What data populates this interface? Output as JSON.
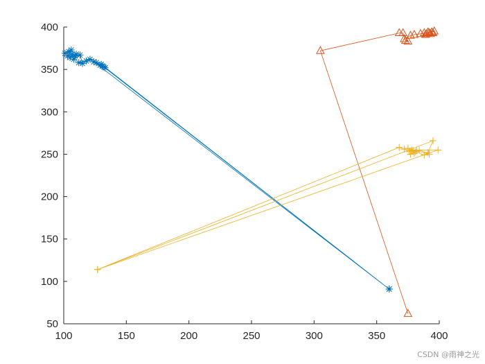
{
  "chart_data": {
    "type": "scatter",
    "xlim": [
      100,
      400
    ],
    "ylim": [
      50,
      400
    ],
    "xticks": [
      100,
      150,
      200,
      250,
      300,
      350,
      400
    ],
    "yticks": [
      50,
      100,
      150,
      200,
      250,
      300,
      350,
      400
    ],
    "grid": false,
    "box": false,
    "series": [
      {
        "color": "#0072BD",
        "marker": "asterisk",
        "points": [
          [
            101,
            369
          ],
          [
            104,
            371
          ],
          [
            106,
            373
          ],
          [
            103,
            366
          ],
          [
            107,
            368
          ],
          [
            109,
            366
          ],
          [
            105,
            364
          ],
          [
            110,
            368
          ],
          [
            108,
            362
          ],
          [
            113,
            367
          ],
          [
            115,
            357
          ],
          [
            112,
            358
          ],
          [
            118,
            360
          ],
          [
            121,
            362
          ],
          [
            126,
            358
          ],
          [
            129,
            355
          ],
          [
            131,
            354
          ],
          [
            133,
            352
          ],
          [
            360,
            91
          ],
          [
            130,
            356
          ],
          [
            124,
            359
          ],
          [
            360,
            91
          ],
          [
            132,
            353
          ]
        ]
      },
      {
        "color": "#D95319",
        "marker": "triangle",
        "points": [
          [
            375,
            62
          ],
          [
            305,
            372
          ],
          [
            368,
            393
          ],
          [
            371,
            393
          ],
          [
            373,
            384
          ],
          [
            375,
            383
          ],
          [
            372,
            386
          ],
          [
            377,
            390
          ],
          [
            380,
            391
          ],
          [
            385,
            392
          ],
          [
            388,
            393
          ],
          [
            390,
            392
          ],
          [
            392,
            393
          ],
          [
            394,
            394
          ],
          [
            396,
            395
          ],
          [
            391,
            394
          ],
          [
            389,
            391
          ],
          [
            393,
            392
          ],
          [
            395,
            393
          ]
        ]
      },
      {
        "color": "#EDB120",
        "marker": "plus",
        "points": [
          [
            127,
            114
          ],
          [
            368,
            258
          ],
          [
            372,
            256
          ],
          [
            376,
            253
          ],
          [
            378,
            255
          ],
          [
            380,
            251
          ],
          [
            382,
            254
          ],
          [
            377,
            250
          ],
          [
            379,
            254
          ],
          [
            381,
            253
          ],
          [
            388,
            249
          ],
          [
            391,
            252
          ],
          [
            395,
            266
          ],
          [
            127,
            114
          ],
          [
            399,
            255
          ],
          [
            384,
            255
          ],
          [
            392,
            250
          ],
          [
            375,
            257
          ]
        ]
      }
    ]
  },
  "watermark": "CSDN @雨神之光"
}
